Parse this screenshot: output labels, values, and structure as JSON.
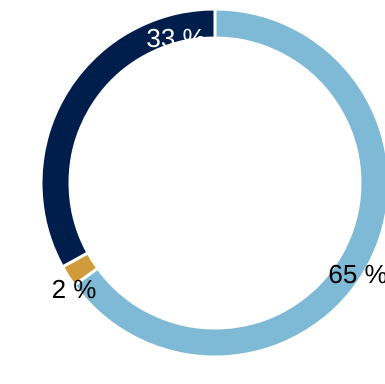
{
  "chart_data": {
    "type": "pie",
    "variant": "donut",
    "slices": [
      {
        "label": "65 %",
        "value": 65,
        "color": "#7eb9d5"
      },
      {
        "label": "2 %",
        "value": 2,
        "color": "#d19a3a"
      },
      {
        "label": "33 %",
        "value": 33,
        "color": "#001e4b"
      }
    ],
    "start_angle_deg": 0,
    "direction": "clockwise",
    "label_colors": [
      "#000000",
      "#000000",
      "#ffffff"
    ]
  }
}
